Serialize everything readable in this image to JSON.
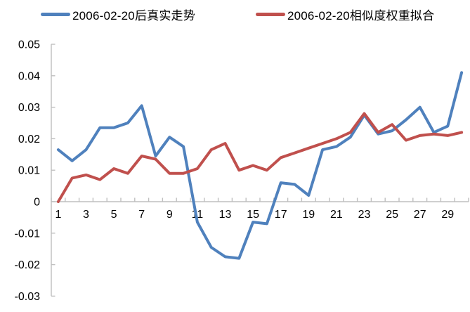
{
  "legend": [
    {
      "label": "2006-02-20后真实走势",
      "color": "#4F81BD"
    },
    {
      "label": "2006-02-20相似度权重拟合",
      "color": "#C0504D"
    }
  ],
  "chart_data": {
    "type": "line",
    "title": "",
    "xlabel": "",
    "ylabel": "",
    "grid": false,
    "legend_position": "top-center",
    "axis_color": "#BFBFBF",
    "text_color": "#000000",
    "ylim": [
      -0.03,
      0.05
    ],
    "y_tick_step": 0.01,
    "x": [
      1,
      2,
      3,
      4,
      5,
      6,
      7,
      8,
      9,
      10,
      11,
      12,
      13,
      14,
      15,
      16,
      17,
      18,
      19,
      20,
      21,
      22,
      23,
      24,
      25,
      26,
      27,
      28,
      29,
      30
    ],
    "x_ticks": [
      {
        "v": 1,
        "label": "1"
      },
      {
        "v": 3,
        "label": "3"
      },
      {
        "v": 5,
        "label": "5"
      },
      {
        "v": 7,
        "label": "7"
      },
      {
        "v": 9,
        "label": "9"
      },
      {
        "v": 11,
        "label": "11"
      },
      {
        "v": 13,
        "label": "13"
      },
      {
        "v": 15,
        "label": "15"
      },
      {
        "v": 17,
        "label": "17"
      },
      {
        "v": 19,
        "label": "19"
      },
      {
        "v": 21,
        "label": "21"
      },
      {
        "v": 23,
        "label": "23"
      },
      {
        "v": 25,
        "label": "25"
      },
      {
        "v": 27,
        "label": "27"
      },
      {
        "v": 29,
        "label": "29"
      }
    ],
    "y_ticks": [
      {
        "v": 0.05,
        "label": "0.05"
      },
      {
        "v": 0.04,
        "label": "0.04"
      },
      {
        "v": 0.03,
        "label": "0.03"
      },
      {
        "v": 0.02,
        "label": "0.02"
      },
      {
        "v": 0.01,
        "label": "0.01"
      },
      {
        "v": 0,
        "label": "0"
      },
      {
        "v": -0.01,
        "label": "-0.01"
      },
      {
        "v": -0.02,
        "label": "-0.02"
      },
      {
        "v": -0.03,
        "label": "-0.03"
      }
    ],
    "series": [
      {
        "name": "2006-02-20后真实走势",
        "color": "#4F81BD",
        "values": [
          0.0165,
          0.013,
          0.0165,
          0.0235,
          0.0235,
          0.025,
          0.0305,
          0.0145,
          0.0205,
          0.0175,
          -0.0065,
          -0.0145,
          -0.0175,
          -0.018,
          -0.0065,
          -0.007,
          0.006,
          0.0055,
          0.002,
          0.0165,
          0.0175,
          0.0205,
          0.0275,
          0.0215,
          0.0225,
          0.026,
          0.03,
          0.022,
          0.024,
          0.041
        ]
      },
      {
        "name": "2006-02-20相似度权重拟合",
        "color": "#C0504D",
        "values": [
          0.0,
          0.0075,
          0.0085,
          0.007,
          0.0105,
          0.009,
          0.0145,
          0.0135,
          0.009,
          0.009,
          0.0105,
          0.0165,
          0.0185,
          0.01,
          0.0115,
          0.01,
          0.014,
          0.0155,
          0.017,
          0.0185,
          0.02,
          0.022,
          0.028,
          0.022,
          0.0245,
          0.0195,
          0.021,
          0.0215,
          0.021,
          0.022
        ]
      }
    ]
  }
}
